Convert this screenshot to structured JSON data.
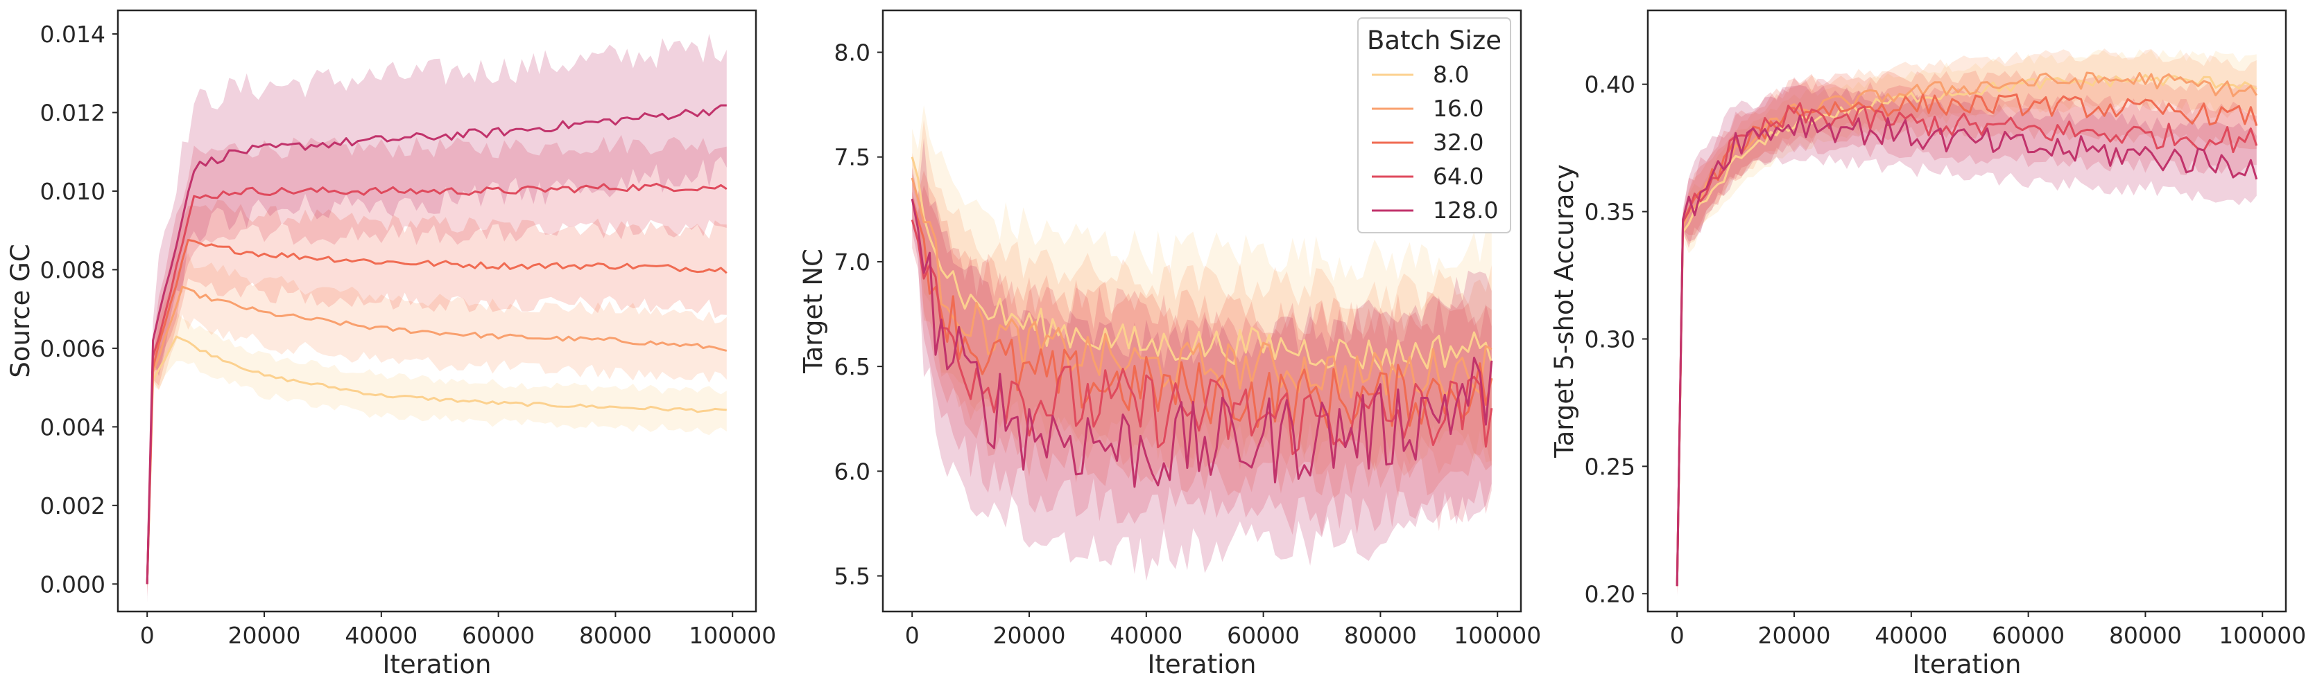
{
  "colors": {
    "series": [
      "#fcd18f",
      "#f9a06e",
      "#f06b52",
      "#df4a5d",
      "#c1336b"
    ],
    "axis": "#262626",
    "background": "#ffffff"
  },
  "chart_data": [
    {
      "type": "line",
      "xlabel": "Iteration",
      "ylabel": "Source GC",
      "xlim": [
        -5000,
        104000
      ],
      "ylim": [
        -0.0007,
        0.0146
      ],
      "xticks": [
        "0",
        "20000",
        "40000",
        "60000",
        "80000",
        "100000"
      ],
      "yticks": [
        "0.000",
        "0.002",
        "0.004",
        "0.006",
        "0.008",
        "0.010",
        "0.012",
        "0.014"
      ],
      "grid": false,
      "x_range": [
        0,
        99000
      ],
      "series": [
        {
          "name": "8.0",
          "points": [
            [
              0,
              0.0
            ],
            [
              1000,
              0.0052
            ],
            [
              5000,
              0.0063
            ],
            [
              10000,
              0.0059
            ],
            [
              20000,
              0.0053
            ],
            [
              40000,
              0.0048
            ],
            [
              60000,
              0.0046
            ],
            [
              80000,
              0.0045
            ],
            [
              99000,
              0.0044
            ]
          ],
          "band": 0.0005
        },
        {
          "name": "16.0",
          "points": [
            [
              0,
              0.0
            ],
            [
              1000,
              0.0054
            ],
            [
              6000,
              0.0075
            ],
            [
              10000,
              0.0073
            ],
            [
              20000,
              0.0069
            ],
            [
              40000,
              0.0065
            ],
            [
              60000,
              0.0063
            ],
            [
              80000,
              0.0062
            ],
            [
              99000,
              0.006
            ]
          ],
          "band": 0.0008
        },
        {
          "name": "32.0",
          "points": [
            [
              0,
              0.0
            ],
            [
              1000,
              0.0055
            ],
            [
              7000,
              0.0087
            ],
            [
              10000,
              0.0086
            ],
            [
              20000,
              0.0084
            ],
            [
              40000,
              0.0082
            ],
            [
              60000,
              0.0081
            ],
            [
              80000,
              0.0081
            ],
            [
              99000,
              0.008
            ]
          ],
          "band": 0.001
        },
        {
          "name": "64.0",
          "points": [
            [
              0,
              0.0
            ],
            [
              1000,
              0.0058
            ],
            [
              8000,
              0.0098
            ],
            [
              15000,
              0.01
            ],
            [
              30000,
              0.01
            ],
            [
              60000,
              0.01
            ],
            [
              80000,
              0.0101
            ],
            [
              99000,
              0.0101
            ]
          ],
          "band": 0.0011
        },
        {
          "name": "128.0",
          "points": [
            [
              0,
              0.0
            ],
            [
              1000,
              0.0062
            ],
            [
              8000,
              0.0106
            ],
            [
              15000,
              0.011
            ],
            [
              30000,
              0.0112
            ],
            [
              60000,
              0.0115
            ],
            [
              80000,
              0.0118
            ],
            [
              99000,
              0.0121
            ]
          ],
          "band": 0.0016
        }
      ]
    },
    {
      "type": "line",
      "xlabel": "Iteration",
      "ylabel": "Target NC",
      "xlim": [
        -5000,
        104000
      ],
      "ylim": [
        5.33,
        8.2
      ],
      "xticks": [
        "0",
        "20000",
        "40000",
        "60000",
        "80000",
        "100000"
      ],
      "yticks": [
        "5.5",
        "6.0",
        "6.5",
        "7.0",
        "7.5",
        "8.0"
      ],
      "grid": false,
      "x_range": [
        0,
        99000
      ],
      "series": [
        {
          "name": "8.0",
          "points": [
            [
              0,
              7.5
            ],
            [
              5000,
              7.0
            ],
            [
              10000,
              6.8
            ],
            [
              20000,
              6.7
            ],
            [
              40000,
              6.6
            ],
            [
              60000,
              6.6
            ],
            [
              80000,
              6.55
            ],
            [
              99000,
              6.6
            ]
          ],
          "band": 0.45
        },
        {
          "name": "16.0",
          "points": [
            [
              0,
              7.4
            ],
            [
              5000,
              6.9
            ],
            [
              10000,
              6.7
            ],
            [
              20000,
              6.6
            ],
            [
              40000,
              6.5
            ],
            [
              60000,
              6.5
            ],
            [
              80000,
              6.45
            ],
            [
              99000,
              6.5
            ]
          ],
          "band": 0.4
        },
        {
          "name": "32.0",
          "points": [
            [
              0,
              7.3
            ],
            [
              5000,
              6.8
            ],
            [
              10000,
              6.6
            ],
            [
              20000,
              6.45
            ],
            [
              40000,
              6.4
            ],
            [
              60000,
              6.35
            ],
            [
              80000,
              6.35
            ],
            [
              99000,
              6.4
            ]
          ],
          "band": 0.4
        },
        {
          "name": "64.0",
          "points": [
            [
              0,
              7.2
            ],
            [
              5000,
              6.7
            ],
            [
              10000,
              6.5
            ],
            [
              20000,
              6.35
            ],
            [
              40000,
              6.3
            ],
            [
              60000,
              6.25
            ],
            [
              80000,
              6.25
            ],
            [
              99000,
              6.3
            ]
          ],
          "band": 0.45
        },
        {
          "name": "128.0",
          "points": [
            [
              0,
              7.3
            ],
            [
              5000,
              6.6
            ],
            [
              10000,
              6.4
            ],
            [
              20000,
              6.2
            ],
            [
              40000,
              6.1
            ],
            [
              60000,
              6.15
            ],
            [
              80000,
              6.2
            ],
            [
              99000,
              6.4
            ]
          ],
          "band": 0.5
        }
      ],
      "legend": {
        "title": "Batch Size",
        "position": "upper right",
        "entries": [
          "8.0",
          "16.0",
          "32.0",
          "64.0",
          "128.0"
        ]
      }
    },
    {
      "type": "line",
      "xlabel": "Iteration",
      "ylabel": "Target 5-shot Accuracy",
      "xlim": [
        -5000,
        104000
      ],
      "ylim": [
        0.193,
        0.429
      ],
      "xticks": [
        "0",
        "20000",
        "40000",
        "60000",
        "80000",
        "100000"
      ],
      "yticks": [
        "0.20",
        "0.25",
        "0.30",
        "0.35",
        "0.40"
      ],
      "grid": false,
      "x_range": [
        0,
        99000
      ],
      "series": [
        {
          "name": "8.0",
          "points": [
            [
              0,
              0.203
            ],
            [
              1000,
              0.342
            ],
            [
              5000,
              0.355
            ],
            [
              10000,
              0.37
            ],
            [
              20000,
              0.385
            ],
            [
              40000,
              0.395
            ],
            [
              60000,
              0.4
            ],
            [
              80000,
              0.402
            ],
            [
              99000,
              0.4
            ]
          ],
          "band": 0.01
        },
        {
          "name": "16.0",
          "points": [
            [
              0,
              0.203
            ],
            [
              1000,
              0.344
            ],
            [
              5000,
              0.358
            ],
            [
              10000,
              0.373
            ],
            [
              20000,
              0.39
            ],
            [
              40000,
              0.397
            ],
            [
              60000,
              0.401
            ],
            [
              80000,
              0.402
            ],
            [
              99000,
              0.397
            ]
          ],
          "band": 0.01
        },
        {
          "name": "32.0",
          "points": [
            [
              0,
              0.203
            ],
            [
              1000,
              0.346
            ],
            [
              5000,
              0.36
            ],
            [
              10000,
              0.375
            ],
            [
              20000,
              0.39
            ],
            [
              40000,
              0.392
            ],
            [
              60000,
              0.392
            ],
            [
              80000,
              0.39
            ],
            [
              99000,
              0.387
            ]
          ],
          "band": 0.011
        },
        {
          "name": "64.0",
          "points": [
            [
              0,
              0.203
            ],
            [
              1000,
              0.346
            ],
            [
              5000,
              0.36
            ],
            [
              10000,
              0.376
            ],
            [
              20000,
              0.388
            ],
            [
              40000,
              0.385
            ],
            [
              60000,
              0.382
            ],
            [
              80000,
              0.38
            ],
            [
              99000,
              0.378
            ]
          ],
          "band": 0.012
        },
        {
          "name": "128.0",
          "points": [
            [
              0,
              0.203
            ],
            [
              1000,
              0.347
            ],
            [
              5000,
              0.362
            ],
            [
              10000,
              0.378
            ],
            [
              20000,
              0.385
            ],
            [
              40000,
              0.38
            ],
            [
              60000,
              0.375
            ],
            [
              80000,
              0.372
            ],
            [
              99000,
              0.368
            ]
          ],
          "band": 0.013
        }
      ]
    }
  ]
}
